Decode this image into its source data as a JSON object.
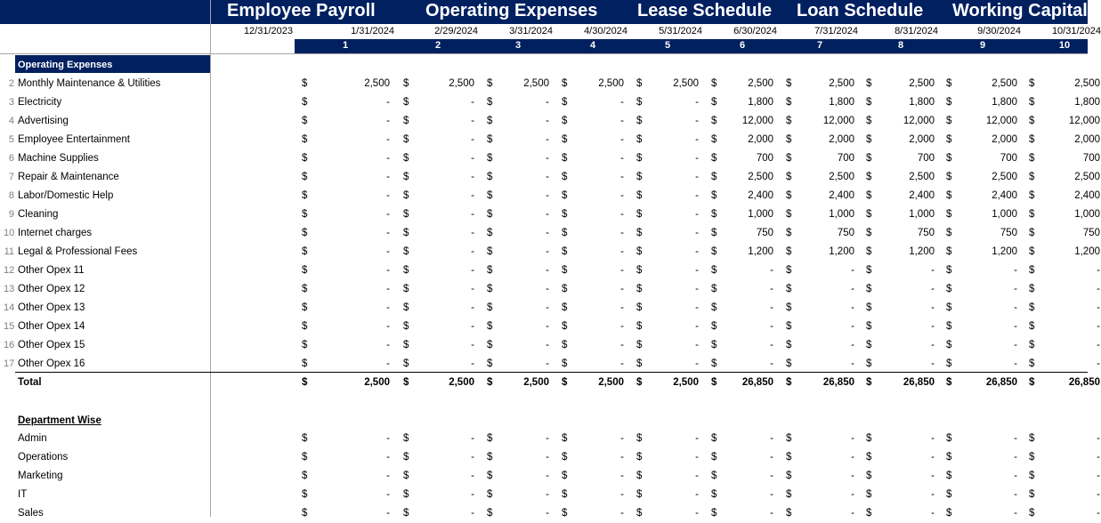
{
  "banner_titles": [
    "Employee Payroll",
    "Operating Expenses",
    "Lease Schedule",
    "Loan Schedule",
    "Working Capital"
  ],
  "dates": [
    "12/31/2023",
    "1/31/2024",
    "2/29/2024",
    "3/31/2024",
    "4/30/2024",
    "5/31/2024",
    "6/30/2024",
    "7/31/2024",
    "8/31/2024",
    "9/30/2024",
    "10/31/2024"
  ],
  "period_numbers": [
    "1",
    "2",
    "3",
    "4",
    "5",
    "6",
    "7",
    "8",
    "9",
    "10"
  ],
  "section_title": "Operating Expenses",
  "currency_symbol": "$",
  "rows": [
    {
      "num": "2",
      "label": "Monthly Maintenance & Utilities",
      "values": [
        "2,500",
        "2,500",
        "2,500",
        "2,500",
        "2,500",
        "2,500",
        "2,500",
        "2,500",
        "2,500",
        "2,500"
      ]
    },
    {
      "num": "3",
      "label": "Electricity",
      "values": [
        "-",
        "-",
        "-",
        "-",
        "-",
        "1,800",
        "1,800",
        "1,800",
        "1,800",
        "1,800"
      ]
    },
    {
      "num": "4",
      "label": "Advertising",
      "values": [
        "-",
        "-",
        "-",
        "-",
        "-",
        "12,000",
        "12,000",
        "12,000",
        "12,000",
        "12,000"
      ]
    },
    {
      "num": "5",
      "label": "Employee Entertainment",
      "values": [
        "-",
        "-",
        "-",
        "-",
        "-",
        "2,000",
        "2,000",
        "2,000",
        "2,000",
        "2,000"
      ]
    },
    {
      "num": "6",
      "label": "Machine Supplies",
      "values": [
        "-",
        "-",
        "-",
        "-",
        "-",
        "700",
        "700",
        "700",
        "700",
        "700"
      ]
    },
    {
      "num": "7",
      "label": "Repair & Maintenance",
      "values": [
        "-",
        "-",
        "-",
        "-",
        "-",
        "2,500",
        "2,500",
        "2,500",
        "2,500",
        "2,500"
      ]
    },
    {
      "num": "8",
      "label": "Labor/Domestic Help",
      "values": [
        "-",
        "-",
        "-",
        "-",
        "-",
        "2,400",
        "2,400",
        "2,400",
        "2,400",
        "2,400"
      ]
    },
    {
      "num": "9",
      "label": "Cleaning",
      "values": [
        "-",
        "-",
        "-",
        "-",
        "-",
        "1,000",
        "1,000",
        "1,000",
        "1,000",
        "1,000"
      ]
    },
    {
      "num": "10",
      "label": "Internet charges",
      "values": [
        "-",
        "-",
        "-",
        "-",
        "-",
        "750",
        "750",
        "750",
        "750",
        "750"
      ]
    },
    {
      "num": "11",
      "label": "Legal & Professional Fees",
      "values": [
        "-",
        "-",
        "-",
        "-",
        "-",
        "1,200",
        "1,200",
        "1,200",
        "1,200",
        "1,200"
      ]
    },
    {
      "num": "12",
      "label": "Other Opex 11",
      "values": [
        "-",
        "-",
        "-",
        "-",
        "-",
        "-",
        "-",
        "-",
        "-",
        "-"
      ]
    },
    {
      "num": "13",
      "label": "Other Opex 12",
      "values": [
        "-",
        "-",
        "-",
        "-",
        "-",
        "-",
        "-",
        "-",
        "-",
        "-"
      ]
    },
    {
      "num": "14",
      "label": "Other Opex 13",
      "values": [
        "-",
        "-",
        "-",
        "-",
        "-",
        "-",
        "-",
        "-",
        "-",
        "-"
      ]
    },
    {
      "num": "15",
      "label": "Other Opex 14",
      "values": [
        "-",
        "-",
        "-",
        "-",
        "-",
        "-",
        "-",
        "-",
        "-",
        "-"
      ]
    },
    {
      "num": "16",
      "label": "Other Opex 15",
      "values": [
        "-",
        "-",
        "-",
        "-",
        "-",
        "-",
        "-",
        "-",
        "-",
        "-"
      ]
    },
    {
      "num": "17",
      "label": "Other Opex 16",
      "values": [
        "-",
        "-",
        "-",
        "-",
        "-",
        "-",
        "-",
        "-",
        "-",
        "-"
      ]
    }
  ],
  "total": {
    "label": "Total",
    "values": [
      "2,500",
      "2,500",
      "2,500",
      "2,500",
      "2,500",
      "26,850",
      "26,850",
      "26,850",
      "26,850",
      "26,850"
    ]
  },
  "department_title": "Department Wise",
  "departments": [
    {
      "label": "Admin",
      "values": [
        "-",
        "-",
        "-",
        "-",
        "-",
        "-",
        "-",
        "-",
        "-",
        "-"
      ]
    },
    {
      "label": "Operations",
      "values": [
        "-",
        "-",
        "-",
        "-",
        "-",
        "-",
        "-",
        "-",
        "-",
        "-"
      ]
    },
    {
      "label": "Marketing",
      "values": [
        "-",
        "-",
        "-",
        "-",
        "-",
        "-",
        "-",
        "-",
        "-",
        "-"
      ]
    },
    {
      "label": "IT",
      "values": [
        "-",
        "-",
        "-",
        "-",
        "-",
        "-",
        "-",
        "-",
        "-",
        "-"
      ]
    },
    {
      "label": "Sales",
      "values": [
        "-",
        "-",
        "-",
        "-",
        "-",
        "-",
        "-",
        "-",
        "-",
        "-"
      ]
    }
  ]
}
